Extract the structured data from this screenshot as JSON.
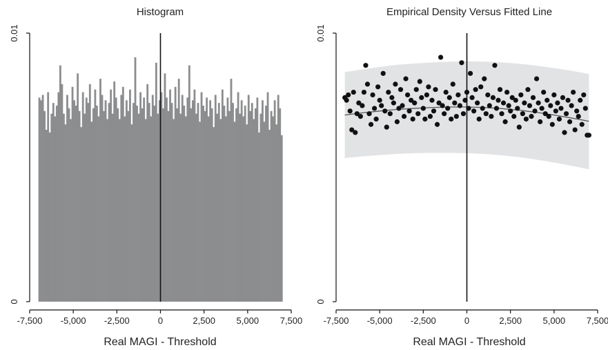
{
  "chart_data": [
    {
      "type": "bar",
      "title": "Histogram",
      "xlabel": "Real MAGI - Threshold",
      "ylabel": "",
      "xlim": [
        -7500,
        7500
      ],
      "ylim": [
        0,
        0.01
      ],
      "x_ticks": [
        -7500,
        -5000,
        -2500,
        0,
        2500,
        5000,
        7500
      ],
      "x_tick_labels": [
        "-7,500",
        "-5,000",
        "-2,500",
        "0",
        "2,500",
        "5,000",
        "7,500"
      ],
      "y_ticks": [
        0,
        0.01
      ],
      "y_tick_labels": [
        "0",
        "0.01"
      ],
      "cutoff_line_x": 0,
      "bar_range": [
        -7000,
        7000
      ],
      "bar_width": 100,
      "values": [
        0.0076,
        0.0075,
        0.0077,
        0.0071,
        0.0064,
        0.0078,
        0.0063,
        0.007,
        0.0074,
        0.0069,
        0.0073,
        0.0078,
        0.0088,
        0.0081,
        0.007,
        0.0066,
        0.0077,
        0.0072,
        0.0068,
        0.008,
        0.0075,
        0.0073,
        0.0085,
        0.0071,
        0.0065,
        0.0078,
        0.007,
        0.0076,
        0.0074,
        0.0081,
        0.0067,
        0.0072,
        0.0079,
        0.0073,
        0.0069,
        0.0083,
        0.0077,
        0.0071,
        0.0075,
        0.0068,
        0.0074,
        0.0079,
        0.007,
        0.0082,
        0.0076,
        0.0072,
        0.0068,
        0.0077,
        0.008,
        0.0069,
        0.0075,
        0.0071,
        0.0079,
        0.0066,
        0.0074,
        0.0091,
        0.0073,
        0.007,
        0.0078,
        0.0072,
        0.0076,
        0.0068,
        0.0081,
        0.0074,
        0.0069,
        0.0077,
        0.0073,
        0.0089,
        0.007,
        0.0075,
        0.0078,
        0.0072,
        0.0085,
        0.0076,
        0.0071,
        0.0079,
        0.0074,
        0.0068,
        0.008,
        0.0072,
        0.0083,
        0.007,
        0.0077,
        0.0073,
        0.0069,
        0.0076,
        0.0088,
        0.0072,
        0.0075,
        0.0079,
        0.007,
        0.0074,
        0.0067,
        0.0078,
        0.0073,
        0.0071,
        0.0076,
        0.0069,
        0.0075,
        0.0072,
        0.0065,
        0.0077,
        0.007,
        0.0074,
        0.0068,
        0.0079,
        0.0073,
        0.0069,
        0.0076,
        0.0071,
        0.0083,
        0.0074,
        0.0067,
        0.0072,
        0.0078,
        0.007,
        0.0075,
        0.0069,
        0.0073,
        0.0066,
        0.0077,
        0.0071,
        0.0074,
        0.0068,
        0.0072,
        0.0076,
        0.0063,
        0.007,
        0.0075,
        0.0067,
        0.0073,
        0.0078,
        0.0064,
        0.0071,
        0.0069,
        0.0075,
        0.0066,
        0.0077,
        0.0072,
        0.0062
      ]
    },
    {
      "type": "scatter",
      "title": "Empirical Density Versus Fitted Line",
      "xlabel": "Real MAGI - Threshold",
      "ylabel": "",
      "xlim": [
        -7500,
        7500
      ],
      "ylim": [
        0,
        0.01
      ],
      "x_ticks": [
        -7500,
        -5000,
        -2500,
        0,
        2500,
        5000,
        7500
      ],
      "x_tick_labels": [
        "-7,500",
        "-5,000",
        "-2,500",
        "0",
        "2,500",
        "5,000",
        "7,500"
      ],
      "y_ticks": [
        0,
        0.01
      ],
      "y_tick_labels": [
        "0",
        "0.01"
      ],
      "cutoff_line_x": 0,
      "fitted_line": {
        "x": [
          -7000,
          -6000,
          -5000,
          -4000,
          -3000,
          -2000,
          -1000,
          0,
          1000,
          2000,
          3000,
          4000,
          5000,
          6000,
          7000
        ],
        "y": [
          0.00695,
          0.00703,
          0.0071,
          0.00716,
          0.0072,
          0.00723,
          0.00725,
          0.00725,
          0.00723,
          0.00719,
          0.00713,
          0.00705,
          0.00695,
          0.00684,
          0.00672
        ]
      },
      "confidence_band": {
        "x": [
          -7000,
          -6000,
          -5000,
          -4000,
          -3000,
          -2000,
          -1000,
          0,
          1000,
          2000,
          3000,
          4000,
          5000,
          6000,
          7000
        ],
        "lower": [
          0.00535,
          0.00541,
          0.00546,
          0.0055,
          0.00553,
          0.00554,
          0.00554,
          0.00553,
          0.0055,
          0.00545,
          0.00538,
          0.00529,
          0.00518,
          0.00506,
          0.00493
        ],
        "upper": [
          0.00855,
          0.00865,
          0.00874,
          0.00882,
          0.00887,
          0.00891,
          0.00894,
          0.00895,
          0.00894,
          0.00891,
          0.00886,
          0.00879,
          0.0087,
          0.0086,
          0.00848
        ]
      },
      "points": {
        "x": [
          -7000,
          -6900,
          -6800,
          -6700,
          -6600,
          -6500,
          -6400,
          -6300,
          -6200,
          -6100,
          -6000,
          -5900,
          -5800,
          -5700,
          -5600,
          -5500,
          -5400,
          -5300,
          -5200,
          -5100,
          -5000,
          -4900,
          -4800,
          -4700,
          -4600,
          -4500,
          -4400,
          -4300,
          -4200,
          -4100,
          -4000,
          -3900,
          -3800,
          -3700,
          -3600,
          -3500,
          -3400,
          -3300,
          -3200,
          -3100,
          -3000,
          -2900,
          -2800,
          -2700,
          -2600,
          -2500,
          -2400,
          -2300,
          -2200,
          -2100,
          -2000,
          -1900,
          -1800,
          -1700,
          -1600,
          -1500,
          -1400,
          -1300,
          -1200,
          -1100,
          -1000,
          -900,
          -800,
          -700,
          -600,
          -500,
          -400,
          -300,
          -200,
          -100,
          0,
          100,
          200,
          300,
          400,
          500,
          600,
          700,
          800,
          900,
          1000,
          1100,
          1200,
          1300,
          1400,
          1500,
          1600,
          1700,
          1800,
          1900,
          2000,
          2100,
          2200,
          2300,
          2400,
          2500,
          2600,
          2700,
          2800,
          2900,
          3000,
          3100,
          3200,
          3300,
          3400,
          3500,
          3600,
          3700,
          3800,
          3900,
          4000,
          4100,
          4200,
          4300,
          4400,
          4500,
          4600,
          4700,
          4800,
          4900,
          5000,
          5100,
          5200,
          5300,
          5400,
          5500,
          5600,
          5700,
          5800,
          5900,
          6000,
          6100,
          6200,
          6300,
          6400,
          6500,
          6600,
          6700,
          6800,
          6900,
          7000
        ],
        "y": [
          0.0076,
          0.0075,
          0.0077,
          0.0071,
          0.0064,
          0.0078,
          0.0063,
          0.007,
          0.0074,
          0.0069,
          0.0073,
          0.0078,
          0.0088,
          0.0081,
          0.007,
          0.0066,
          0.0077,
          0.0072,
          0.0068,
          0.008,
          0.0075,
          0.0073,
          0.0085,
          0.0071,
          0.0065,
          0.0078,
          0.007,
          0.0076,
          0.0074,
          0.0081,
          0.0067,
          0.0072,
          0.0079,
          0.0073,
          0.0069,
          0.0083,
          0.0077,
          0.0071,
          0.0075,
          0.0068,
          0.0074,
          0.0079,
          0.007,
          0.0082,
          0.0076,
          0.0072,
          0.0068,
          0.0077,
          0.008,
          0.0069,
          0.0075,
          0.0071,
          0.0079,
          0.0066,
          0.0074,
          0.0091,
          0.0073,
          0.007,
          0.0078,
          0.0072,
          0.0076,
          0.0068,
          0.0081,
          0.0074,
          0.0069,
          0.0077,
          0.0073,
          0.0089,
          0.007,
          0.0075,
          0.0078,
          0.0072,
          0.0085,
          0.0076,
          0.0071,
          0.0079,
          0.0074,
          0.0068,
          0.008,
          0.0072,
          0.0083,
          0.007,
          0.0077,
          0.0073,
          0.0069,
          0.0076,
          0.0088,
          0.0072,
          0.0075,
          0.0079,
          0.007,
          0.0074,
          0.0067,
          0.0078,
          0.0073,
          0.0071,
          0.0076,
          0.0069,
          0.0075,
          0.0072,
          0.0065,
          0.0077,
          0.007,
          0.0074,
          0.0068,
          0.0079,
          0.0073,
          0.0069,
          0.0076,
          0.0071,
          0.0083,
          0.0074,
          0.0067,
          0.0072,
          0.0078,
          0.007,
          0.0075,
          0.0069,
          0.0073,
          0.0066,
          0.0077,
          0.0071,
          0.0074,
          0.0068,
          0.0072,
          0.0076,
          0.0063,
          0.007,
          0.0075,
          0.0067,
          0.0073,
          0.0078,
          0.0064,
          0.0071,
          0.0069,
          0.0075,
          0.0066,
          0.0077,
          0.0072,
          0.0062,
          0.0062
        ]
      }
    }
  ],
  "colors": {
    "bar_fill": "#8c8d8f",
    "band_fill": "#e2e3e5",
    "point_fill": "#111111",
    "fit_line": "#555555",
    "axis": "#111111"
  }
}
